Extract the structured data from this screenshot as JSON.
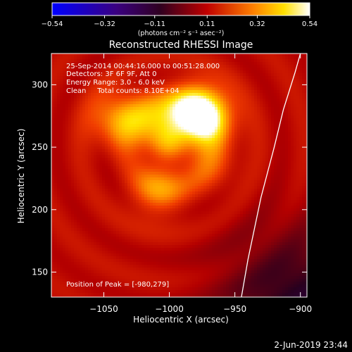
{
  "chart_data": {
    "type": "heatmap",
    "title": "Reconstructed RHESSI Image",
    "xlabel": "Heliocentric X (arcsec)",
    "ylabel": "Heliocentric Y (arcsec)",
    "xlim": [
      -1090,
      -895
    ],
    "ylim": [
      130,
      325
    ],
    "xticks": [
      {
        "value": -1050,
        "label": "−1050"
      },
      {
        "value": -1000,
        "label": "−1000"
      },
      {
        "value": -950,
        "label": "−950"
      },
      {
        "value": -900,
        "label": "−900"
      }
    ],
    "yticks": [
      {
        "value": 150,
        "label": "150"
      },
      {
        "value": 200,
        "label": "200"
      },
      {
        "value": 250,
        "label": "250"
      },
      {
        "value": 300,
        "label": "300"
      }
    ],
    "colorbar": {
      "range": [
        -0.54,
        0.54
      ],
      "ticks": [
        {
          "value": -0.54,
          "label": "−0.54"
        },
        {
          "value": -0.32,
          "label": "−0.32"
        },
        {
          "value": -0.11,
          "label": "−0.11"
        },
        {
          "value": 0.11,
          "label": "0.11"
        },
        {
          "value": 0.32,
          "label": "0.32"
        },
        {
          "value": 0.54,
          "label": "0.54"
        }
      ],
      "unit_label": "(photons cm⁻² s⁻¹ asec⁻²)",
      "colormap": [
        "#0000ff",
        "#000000",
        "#ff0000",
        "#ffff00",
        "#ffffff"
      ]
    },
    "annotations": {
      "line1": "25-Sep-2014 00:44:16.000 to 00:51:28.000",
      "line2": "Detectors: 3F 6F 9F, Att 0",
      "line3": "Energy Range: 3.0 - 6.0 keV",
      "line4": "Clean     Total counts: 8.10E+04",
      "peak": "Position of Peak = [-980,279]"
    },
    "sources": [
      {
        "x": -980,
        "y": 279,
        "intensity": 0.54
      },
      {
        "x": -1040,
        "y": 275,
        "intensity": 0.32
      },
      {
        "x": -1010,
        "y": 270,
        "intensity": 0.36
      },
      {
        "x": -1008,
        "y": 222,
        "intensity": 0.3
      },
      {
        "x": -970,
        "y": 240,
        "intensity": 0.22
      },
      {
        "x": -970,
        "y": 275,
        "intensity": 0.28
      }
    ],
    "limb_x": [
      -945,
      -940,
      -930,
      -920,
      -913,
      -904,
      -900
    ],
    "limb_y": [
      130,
      160,
      210,
      250,
      280,
      310,
      325
    ]
  },
  "footer": {
    "date": "2-Jun-2019 23:44"
  }
}
